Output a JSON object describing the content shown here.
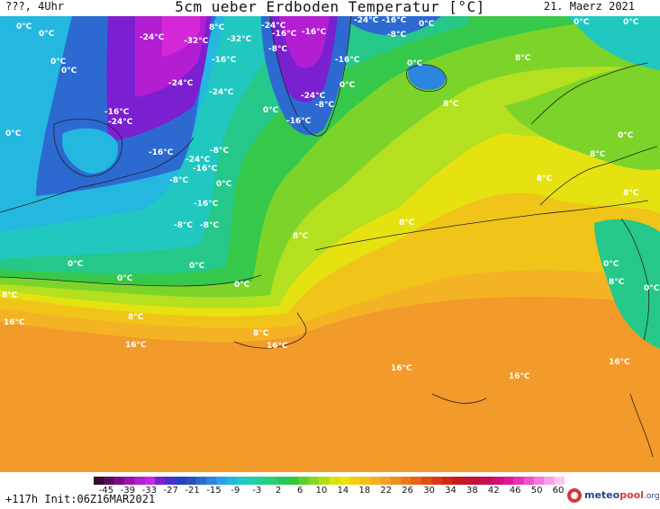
{
  "header": {
    "run_label": "???, 4Uhr",
    "title": "5cm ueber Erdboden Temperatur [°C]",
    "date": "21. Maerz 2021"
  },
  "footer": {
    "init_label": "+117h  Init:06Z16MAR2021",
    "brand": {
      "part1": "meteo",
      "part2": "pool",
      "part3": ".org"
    }
  },
  "colorscale": {
    "tick_labels": [
      "-45",
      "-39",
      "-33",
      "-27",
      "-21",
      "-15",
      "-9",
      "-3",
      "2",
      "6",
      "10",
      "14",
      "18",
      "22",
      "26",
      "30",
      "34",
      "38",
      "42",
      "46",
      "50",
      "60"
    ],
    "colors": [
      "#3a0a2a",
      "#5a0a5a",
      "#7a0a8a",
      "#9a14b0",
      "#b41ed2",
      "#c828e6",
      "#7a20d0",
      "#4a30c8",
      "#2a40c0",
      "#2850b8",
      "#2c6ad2",
      "#3084e0",
      "#2aa0e8",
      "#22b8e0",
      "#20c8c8",
      "#20d0b0",
      "#22d090",
      "#26d070",
      "#28c858",
      "#30c83c",
      "#5ad02a",
      "#86d81e",
      "#b0e014",
      "#d8e410",
      "#f0e00c",
      "#f4d010",
      "#f4c018",
      "#f4b020",
      "#f4a026",
      "#f09020",
      "#ec7a1a",
      "#e86418",
      "#e05016",
      "#d83c16",
      "#d02a18",
      "#c81c1c",
      "#c01828",
      "#c01440",
      "#c8105a",
      "#d41078",
      "#e01896",
      "#e830b4",
      "#f050cc",
      "#f478dc",
      "#f8a0e8",
      "#fcc8f2"
    ]
  },
  "map_labels": [
    "0°C",
    "0°C",
    "0°C",
    "0°C",
    "0°C",
    "0°C",
    "0°C",
    "0°C",
    "0°C",
    "0°C",
    "0°C",
    "0°C",
    "0°C",
    "0°C",
    "0°C",
    "0°C",
    "0°C",
    "0°C",
    "0°C",
    "-24°C",
    "-32°C",
    "-32°C",
    "-24°C",
    "-16°C",
    "-16°C",
    "-8°C",
    "-24°C",
    "-16°C",
    "-8°C",
    "-16°C",
    "-24°C",
    "-24°C",
    "-24°C",
    "-16°C",
    "-8°C",
    "-16°C",
    "-24°C",
    "-16°C",
    "-24°C",
    "-8°C",
    "-16°C",
    "-8°C",
    "-16°C",
    "-8°C",
    "-8°C",
    "-16°C",
    "8°C",
    "8°C",
    "8°C",
    "8°C",
    "8°C",
    "8°C",
    "8°C",
    "8°C",
    "8°C",
    "8°C",
    "8°C",
    "8°C",
    "16°C",
    "16°C",
    "16°C",
    "16°C",
    "16°C",
    "16°C"
  ],
  "map_label_styles": {
    "color": "#ffffff"
  }
}
